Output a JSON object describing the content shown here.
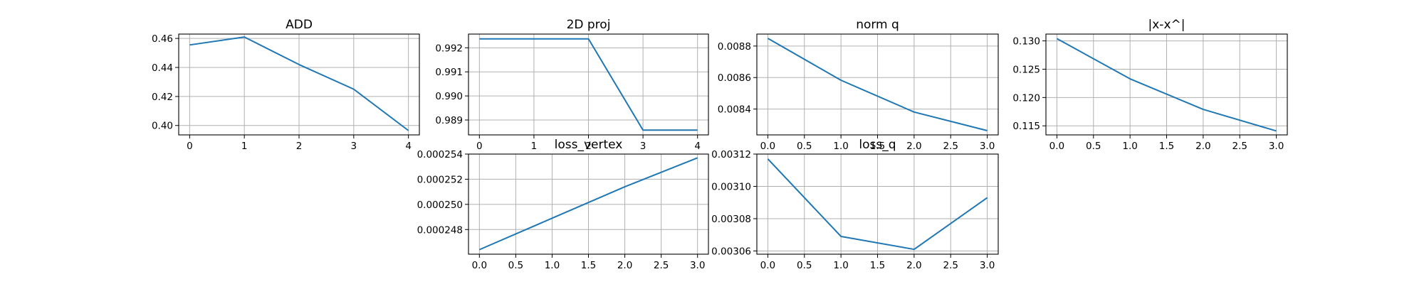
{
  "chart_data": [
    {
      "type": "line",
      "title": "ADD",
      "x": [
        0,
        1,
        2,
        3,
        4
      ],
      "values": [
        0.4555,
        0.461,
        0.442,
        0.425,
        0.3965
      ],
      "xlim": [
        -0.2,
        4.2
      ],
      "ylim": [
        0.3935,
        0.463
      ],
      "xticks": [
        0,
        1,
        2,
        3,
        4
      ],
      "xtick_labels": [
        "0",
        "1",
        "2",
        "3",
        "4"
      ],
      "yticks": [
        0.4,
        0.42,
        0.44,
        0.46
      ],
      "ytick_labels": [
        "0.40",
        "0.42",
        "0.44",
        "0.46"
      ],
      "grid": true
    },
    {
      "type": "line",
      "title": "2D proj",
      "x": [
        0,
        1,
        2,
        3,
        4
      ],
      "values": [
        0.99237,
        0.99237,
        0.99237,
        0.98858,
        0.98858
      ],
      "xlim": [
        -0.2,
        4.2
      ],
      "ylim": [
        0.98838,
        0.99257
      ],
      "xticks": [
        0,
        1,
        2,
        3,
        4
      ],
      "xtick_labels": [
        "0",
        "1",
        "2",
        "3",
        "4"
      ],
      "yticks": [
        0.989,
        0.99,
        0.991,
        0.992
      ],
      "ytick_labels": [
        "0.989",
        "0.990",
        "0.991",
        "0.992"
      ],
      "grid": true
    },
    {
      "type": "line",
      "title": "norm q",
      "x": [
        0,
        1,
        2,
        3
      ],
      "values": [
        0.008849,
        0.008583,
        0.008381,
        0.008263
      ],
      "xlim": [
        -0.15,
        3.15
      ],
      "ylim": [
        0.008236,
        0.008876
      ],
      "xticks": [
        0,
        0.5,
        1,
        1.5,
        2,
        2.5,
        3
      ],
      "xtick_labels": [
        "0.0",
        "0.5",
        "1.0",
        "1.5",
        "2.0",
        "2.5",
        "3.0"
      ],
      "yticks": [
        0.0084,
        0.0086,
        0.0088
      ],
      "ytick_labels": [
        "0.0084",
        "0.0086",
        "0.0088"
      ],
      "grid": true
    },
    {
      "type": "line",
      "title": "|x-x^|",
      "x": [
        0,
        1,
        2,
        3
      ],
      "values": [
        0.1304,
        0.1233,
        0.1179,
        0.1141
      ],
      "xlim": [
        -0.15,
        3.15
      ],
      "ylim": [
        0.1134,
        0.1312
      ],
      "xticks": [
        0,
        0.5,
        1,
        1.5,
        2,
        2.5,
        3
      ],
      "xtick_labels": [
        "0.0",
        "0.5",
        "1.0",
        "1.5",
        "2.0",
        "2.5",
        "3.0"
      ],
      "yticks": [
        0.115,
        0.12,
        0.125,
        0.13
      ],
      "ytick_labels": [
        "0.115",
        "0.120",
        "0.125",
        "0.130"
      ],
      "grid": true
    },
    {
      "type": "line",
      "title": "loss_vertex",
      "x": [
        0,
        1,
        2,
        3
      ],
      "values": [
        0.0002464,
        0.0002489,
        0.0002514,
        0.0002537
      ],
      "xlim": [
        -0.15,
        3.15
      ],
      "ylim": [
        0.00024604,
        0.000254
      ],
      "xticks": [
        0,
        0.5,
        1,
        1.5,
        2,
        2.5,
        3
      ],
      "xtick_labels": [
        "0.0",
        "0.5",
        "1.0",
        "1.5",
        "2.0",
        "2.5",
        "3.0"
      ],
      "yticks": [
        0.000248,
        0.00025,
        0.000252,
        0.000254
      ],
      "ytick_labels": [
        "0.000248",
        "0.000250",
        "0.000252",
        "0.000254"
      ],
      "grid": true
    },
    {
      "type": "line",
      "title": "loss_q",
      "x": [
        0,
        1,
        2,
        3
      ],
      "values": [
        0.003117,
        0.003069,
        0.003061,
        0.003093
      ],
      "xlim": [
        -0.15,
        3.15
      ],
      "ylim": [
        0.003058,
        0.00312
      ],
      "xticks": [
        0,
        0.5,
        1,
        1.5,
        2,
        2.5,
        3
      ],
      "xtick_labels": [
        "0.0",
        "0.5",
        "1.0",
        "1.5",
        "2.0",
        "2.5",
        "3.0"
      ],
      "yticks": [
        0.00306,
        0.00308,
        0.0031,
        0.00312
      ],
      "ytick_labels": [
        "0.00306",
        "0.00308",
        "0.00310",
        "0.00312"
      ],
      "grid": true
    }
  ],
  "colors": {
    "series": "#1f77b4",
    "grid": "#b0b0b0",
    "frame": "#000000"
  }
}
